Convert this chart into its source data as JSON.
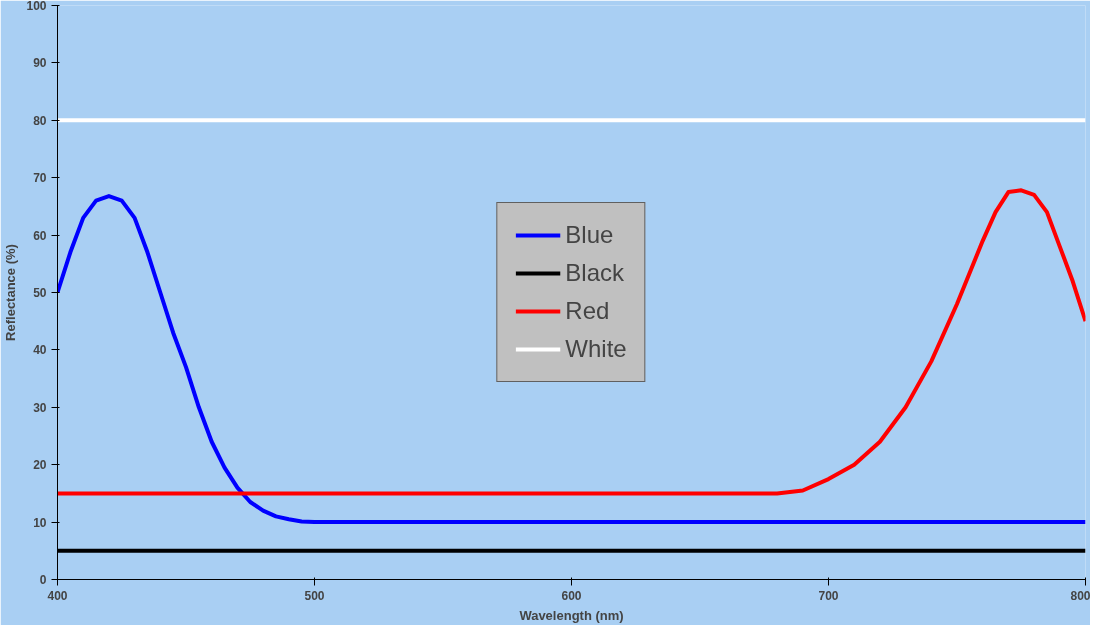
{
  "chart_data": {
    "type": "line",
    "xlabel": "Wavelength (nm)",
    "ylabel": "Reflectance (%)",
    "xlim": [
      400,
      800
    ],
    "xticks": [
      400,
      500,
      600,
      700,
      800
    ],
    "ylim": [
      0,
      100
    ],
    "yticks": [
      0,
      10,
      20,
      30,
      40,
      50,
      60,
      70,
      80,
      90,
      100
    ],
    "grid": false,
    "legend": "center",
    "marker": "none",
    "line_style": "solid",
    "series": [
      {
        "name": "Blue",
        "color": "#0000ff",
        "x": [
          400,
          405,
          410,
          415,
          420,
          425,
          430,
          435,
          440,
          445,
          450,
          455,
          460,
          465,
          470,
          475,
          480,
          485,
          490,
          495,
          500,
          510,
          800
        ],
        "values": [
          50,
          57,
          63,
          66,
          66.8,
          66,
          63,
          57,
          50,
          43,
          37,
          30,
          24,
          19.5,
          16,
          13.5,
          12,
          11,
          10.5,
          10.1,
          10,
          10,
          10
        ]
      },
      {
        "name": "Black",
        "color": "#000000",
        "x": [
          400,
          800
        ],
        "values": [
          5,
          5
        ]
      },
      {
        "name": "Red",
        "color": "#ff0000",
        "x": [
          400,
          680,
          690,
          700,
          710,
          720,
          730,
          740,
          750,
          760,
          765,
          770,
          775,
          780,
          785,
          790,
          795,
          800
        ],
        "values": [
          15,
          15,
          15.5,
          17.5,
          20,
          24,
          30,
          38,
          48,
          59,
          64,
          67.5,
          67.8,
          67,
          64,
          58,
          52,
          45
        ]
      },
      {
        "name": "White",
        "color": "#ffffff",
        "x": [
          400,
          800
        ],
        "values": [
          80,
          80
        ]
      }
    ]
  }
}
